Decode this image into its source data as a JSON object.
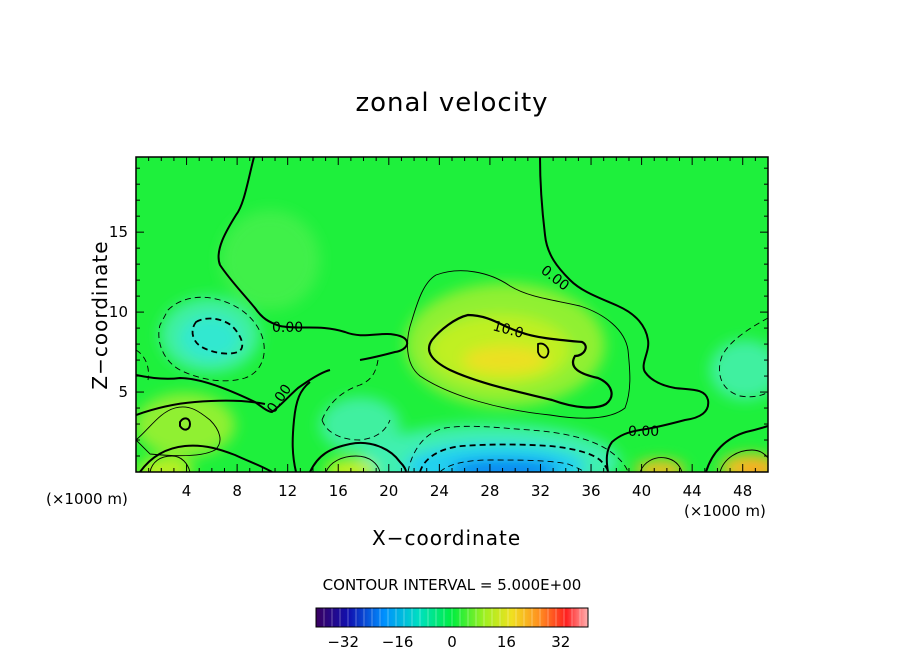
{
  "chart_data": {
    "type": "heatmap",
    "title": "zonal velocity",
    "xlabel": "X−coordinate",
    "ylabel": "Z−coordinate",
    "x_unit_left": "(×1000 m)",
    "x_unit_right": "(×1000 m)",
    "x_ticks": [
      "4",
      "8",
      "12",
      "16",
      "20",
      "24",
      "28",
      "32",
      "36",
      "40",
      "44",
      "48"
    ],
    "y_ticks": [
      "5",
      "10",
      "15"
    ],
    "xlim": [
      0,
      50
    ],
    "ylim": [
      0,
      19.7
    ],
    "contour_interval_text": "CONTOUR INTERVAL = 5.000E+00",
    "contour_labels": [
      "0.00",
      "0.00",
      "0.00",
      "0.00",
      "10.0"
    ],
    "colorbar": {
      "range": [
        -40,
        40
      ],
      "ticks": [
        "−32",
        "−16",
        "0",
        "16",
        "32"
      ],
      "tick_values": [
        -32,
        -16,
        0,
        16,
        32
      ]
    },
    "features": [
      {
        "x": 28.5,
        "z": 7.5,
        "value": 20,
        "kind": "jet maximum"
      },
      {
        "x": 30,
        "z": 0.5,
        "value": -20,
        "kind": "near-surface minimum"
      },
      {
        "x": 5,
        "z": 9,
        "value": -8,
        "kind": "negative core"
      },
      {
        "x": 49,
        "z": 0.5,
        "value": 24,
        "kind": "surface maximum"
      },
      {
        "x": 41,
        "z": 0.5,
        "value": 18,
        "kind": "surface maximum"
      },
      {
        "x": 17.5,
        "z": 0.5,
        "value": 16,
        "kind": "surface maximum"
      },
      {
        "x": 3,
        "z": 3,
        "value": 12,
        "kind": "positive core"
      }
    ]
  }
}
